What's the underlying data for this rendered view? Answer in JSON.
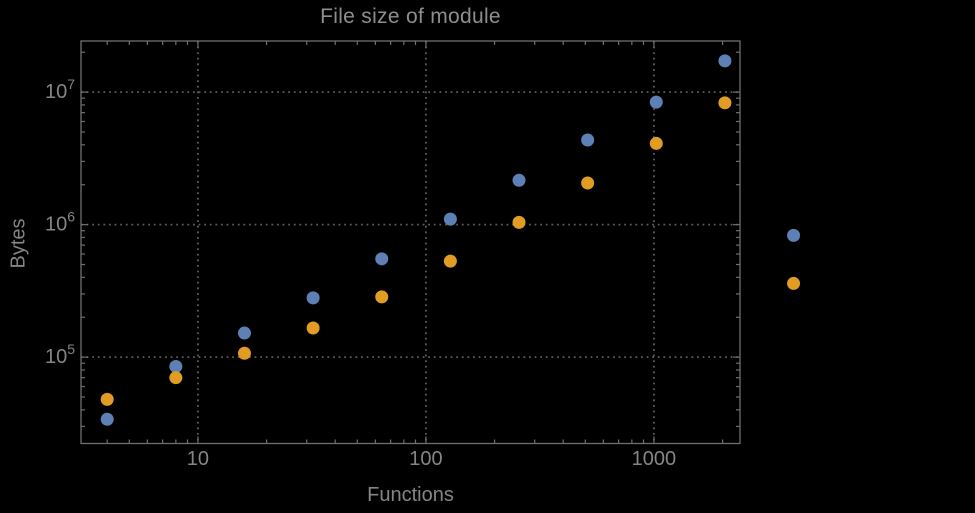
{
  "chart_data": {
    "type": "scatter",
    "title": "File size of module",
    "xlabel": "Functions",
    "ylabel": "Bytes",
    "x_scale": "log",
    "y_scale": "log",
    "xlim": [
      3.07,
      2385
    ],
    "ylim": [
      22300,
      24300000
    ],
    "grid": "dotted lines at decade positions only",
    "legend": "none",
    "clipping": false,
    "x": [
      4,
      8,
      16,
      32,
      64,
      128,
      256,
      512,
      1024,
      2048,
      4096
    ],
    "series": [
      {
        "name": "series-1-blue",
        "color": "#5E81B5",
        "values": [
          34000,
          85000,
          152000,
          280000,
          552000,
          1100000,
          2160000,
          4350000,
          8400000,
          17200000,
          830000
        ]
      },
      {
        "name": "series-2-orange",
        "color": "#E19C24",
        "values": [
          48000,
          70000,
          107000,
          166000,
          285000,
          530000,
          1040000,
          2060000,
          4100000,
          8300000,
          360000
        ]
      }
    ],
    "x_tick_labels": [
      {
        "value": 10,
        "label": "10"
      },
      {
        "value": 100,
        "label": "100"
      },
      {
        "value": 1000,
        "label": "1000"
      }
    ],
    "y_tick_labels": [
      {
        "value": 100000,
        "base": "10",
        "exp": "5"
      },
      {
        "value": 1000000,
        "base": "10",
        "exp": "6"
      },
      {
        "value": 10000000,
        "base": "10",
        "exp": "7"
      }
    ],
    "x_gridlines": [
      10,
      100,
      1000
    ],
    "y_gridlines": [
      100000,
      1000000,
      10000000
    ]
  },
  "colors": {
    "background": "#000000",
    "frame": "#6F6F6F",
    "grid": "#5C5C5C",
    "tick_text": "#858585",
    "title_text": "#8E8E8E",
    "series1": "#5E81B5",
    "series2": "#E19C24"
  },
  "marker": {
    "radius": 6.5
  }
}
